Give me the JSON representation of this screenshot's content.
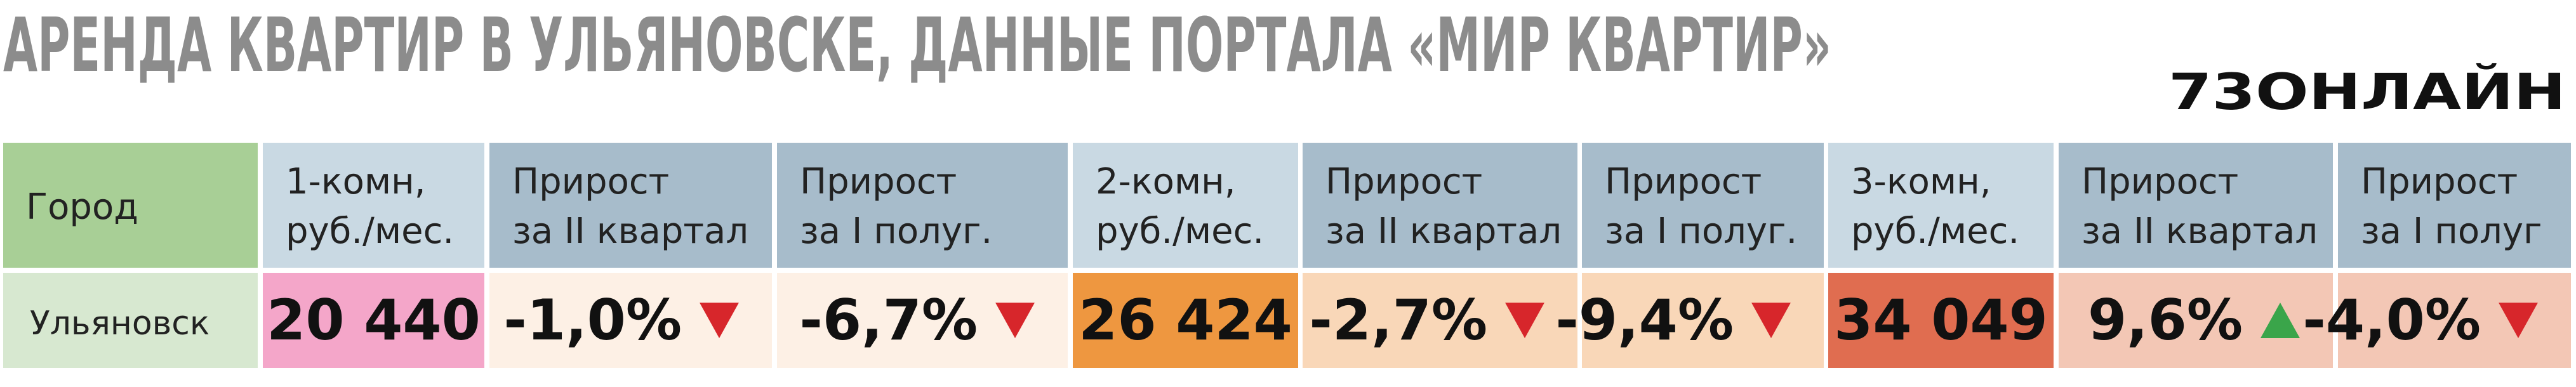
{
  "title": "АРЕНДА КВАРТИР В УЛЬЯНОВСКЕ, ДАННЫЕ ПОРТАЛА «МИР КВАРТИР»",
  "logo": "73ОНЛАЙН",
  "table": {
    "header": [
      [
        "Город"
      ],
      [
        "1-комн,",
        "руб./мес."
      ],
      [
        "Прирост",
        "за II квартал"
      ],
      [
        "Прирост",
        "за I полуг."
      ],
      [
        "2-комн,",
        "руб./мес."
      ],
      [
        "Прирост",
        "за II квартал"
      ],
      [
        "Прирост",
        "за I полуг."
      ],
      [
        "3-комн,",
        "руб./мес."
      ],
      [
        "Прирост",
        "за II квартал"
      ],
      [
        "Прирост",
        "за I полуг"
      ]
    ],
    "rows": [
      [
        "Ульяновск",
        "20 440",
        "-1,0%",
        "-6,7%",
        "26 424",
        "-2,7%",
        "-9,4%",
        "34 049",
        "9,6%",
        "-4,0%"
      ]
    ]
  }
}
